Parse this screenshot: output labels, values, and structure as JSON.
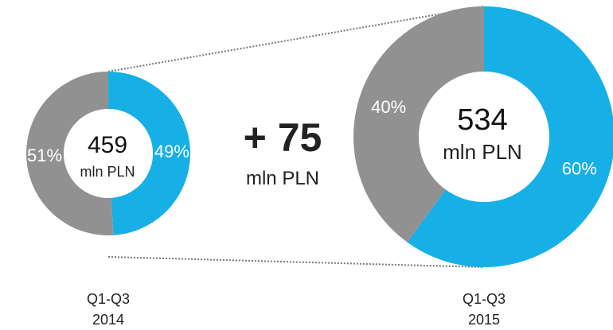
{
  "chart_data": {
    "type": "pie",
    "colors": {
      "segment_a": "#16b0e6",
      "segment_b": "#919191",
      "connector": "#777777"
    },
    "delta": {
      "value": "+ 75",
      "unit": "mln PLN"
    },
    "charts": [
      {
        "period_line1": "Q1-Q3",
        "period_line2": "2014",
        "total": "459",
        "unit": "mln PLN",
        "slices": [
          {
            "value": 49,
            "label": "49%",
            "color": "#16b0e6"
          },
          {
            "value": 51,
            "label": "51%",
            "color": "#919191"
          }
        ]
      },
      {
        "period_line1": "Q1-Q3",
        "period_line2": "2015",
        "total": "534",
        "unit": "mln PLN",
        "slices": [
          {
            "value": 60,
            "label": "60%",
            "color": "#16b0e6"
          },
          {
            "value": 40,
            "label": "40%",
            "color": "#919191"
          }
        ]
      }
    ]
  }
}
